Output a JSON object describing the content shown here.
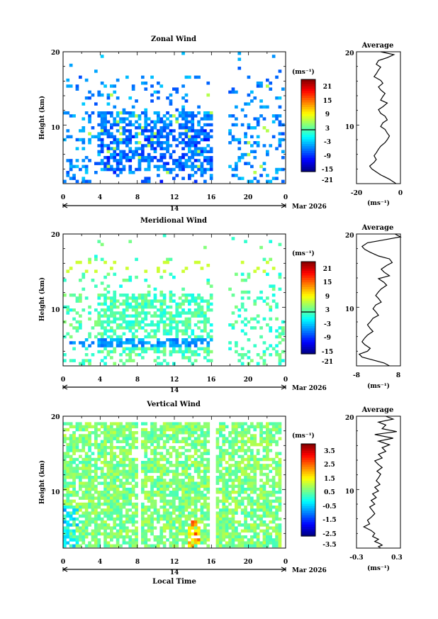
{
  "panels": [
    {
      "id": "zonal",
      "title": "Zonal Wind",
      "unit_label": "(ms⁻¹)",
      "colorbar_ticks": [
        "21",
        "15",
        "9",
        "3",
        "-3",
        "-9",
        "-15",
        "-21"
      ],
      "colorbar_range": [
        -24,
        24
      ],
      "zero_line": 0,
      "coverage": "sparse"
    },
    {
      "id": "meridional",
      "title": "Meridional Wind",
      "unit_label": "(ms⁻¹)",
      "colorbar_ticks": [
        "21",
        "15",
        "9",
        "3",
        "-3",
        "-9",
        "-15",
        "-21"
      ],
      "colorbar_range": [
        -24,
        24
      ],
      "zero_line": 0,
      "coverage": "sparse"
    },
    {
      "id": "vertical",
      "title": "Vertical Wind",
      "unit_label": "(ms⁻¹)",
      "colorbar_ticks": [
        "3.5",
        "2.5",
        "1.5",
        "0.5",
        "-0.5",
        "-1.5",
        "-2.5",
        "-3.5"
      ],
      "colorbar_range": [
        -4,
        4
      ],
      "coverage": "dense"
    }
  ],
  "ylabel": "Height (km)",
  "y_ticks": [
    "20",
    "10"
  ],
  "x_ticks": [
    "0",
    "4",
    "8",
    "12",
    "16",
    "20",
    "0"
  ],
  "day_label": "14",
  "month_label": "Mar 2026",
  "xlabel": "Local Time",
  "avg_title": "Average",
  "avg_unit": "(ms⁻¹)",
  "chart_data": [
    {
      "type": "heatmap",
      "title": "Zonal Wind",
      "xlabel": "",
      "ylabel": "Height (km)",
      "xlim": [
        0,
        24
      ],
      "ylim": [
        2,
        20
      ],
      "colorbar": {
        "unit": "ms⁻¹",
        "range": [
          -24,
          24
        ]
      }
    },
    {
      "type": "line",
      "title": "Average",
      "xlabel": "(ms⁻¹)",
      "ylabel": "",
      "xlim": [
        -20,
        0
      ],
      "x_ticks": [
        "-20",
        "0"
      ],
      "ylim": [
        2,
        20
      ],
      "y_ticks": [
        "20",
        "10"
      ],
      "series": [
        {
          "x": [
            -9,
            -3,
            -6,
            -10,
            -11,
            -9,
            -10,
            -11,
            -12,
            -9,
            -8,
            -10,
            -9,
            -7,
            -8,
            -9,
            -6,
            -8,
            -10,
            -9,
            -7,
            -6,
            -8,
            -9,
            -7,
            -6,
            -5,
            -6,
            -7,
            -9,
            -10,
            -11,
            -12,
            -11,
            -12,
            -14,
            -13,
            -11,
            -9,
            -7,
            -5,
            -4,
            -3,
            -2
          ],
          "y": [
            20,
            19.6,
            19.2,
            18.8,
            18.3,
            17.9,
            17.5,
            17.0,
            16.6,
            16.1,
            15.7,
            15.2,
            14.8,
            14.3,
            13.9,
            13.4,
            13.0,
            12.5,
            12.1,
            11.6,
            11.2,
            10.7,
            10.3,
            9.8,
            9.4,
            8.9,
            8.5,
            8.0,
            7.6,
            7.1,
            6.7,
            6.2,
            5.8,
            5.3,
            4.9,
            4.4,
            4.0,
            3.6,
            3.2,
            2.9,
            2.6,
            2.4,
            2.2,
            2.0
          ]
        }
      ]
    },
    {
      "type": "heatmap",
      "title": "Meridional Wind",
      "xlabel": "",
      "ylabel": "Height (km)",
      "xlim": [
        0,
        24
      ],
      "ylim": [
        2,
        20
      ],
      "colorbar": {
        "unit": "ms⁻¹",
        "range": [
          -24,
          24
        ]
      }
    },
    {
      "type": "line",
      "title": "Average",
      "xlabel": "(ms⁻¹)",
      "ylabel": "",
      "xlim": [
        -8,
        8
      ],
      "x_ticks": [
        "-8",
        "8"
      ],
      "ylim": [
        2,
        20
      ],
      "y_ticks": [
        "20",
        "10"
      ],
      "series": [
        {
          "x": [
            6,
            8,
            2,
            -4,
            -6,
            -5,
            -3,
            0,
            4,
            5,
            3,
            1,
            2,
            4,
            0,
            2,
            3,
            1,
            0,
            -1,
            0,
            1,
            -1,
            -2,
            -1,
            0,
            -2,
            -3,
            -4,
            -3,
            -2,
            -4,
            -5,
            -6,
            -5,
            -3,
            -4,
            -7,
            -6,
            -3,
            0,
            2,
            3,
            4
          ],
          "y": [
            20,
            19.6,
            19.2,
            18.8,
            18.3,
            17.9,
            17.5,
            17.0,
            16.6,
            16.1,
            15.7,
            15.2,
            14.8,
            14.3,
            13.9,
            13.4,
            13.0,
            12.5,
            12.1,
            11.6,
            11.2,
            10.7,
            10.3,
            9.8,
            9.4,
            8.9,
            8.5,
            8.0,
            7.6,
            7.1,
            6.7,
            6.2,
            5.8,
            5.3,
            4.9,
            4.4,
            4.0,
            3.6,
            3.2,
            2.9,
            2.6,
            2.4,
            2.2,
            2.0
          ]
        }
      ]
    },
    {
      "type": "heatmap",
      "title": "Vertical Wind",
      "xlabel": "Local Time",
      "ylabel": "Height (km)",
      "xlim": [
        0,
        24
      ],
      "ylim": [
        2,
        20
      ],
      "colorbar": {
        "unit": "ms⁻¹",
        "range": [
          -4,
          4
        ]
      }
    },
    {
      "type": "line",
      "title": "Average",
      "xlabel": "(ms⁻¹)",
      "ylabel": "",
      "xlim": [
        -0.3,
        0.3
      ],
      "x_ticks": [
        "-0.3",
        "0.3"
      ],
      "ylim": [
        2,
        20
      ],
      "y_ticks": [
        "20",
        "10"
      ],
      "series": [
        {
          "x": [
            0.1,
            0.2,
            0.0,
            0.1,
            0.05,
            0.25,
            -0.05,
            0.2,
            0.0,
            0.15,
            0.05,
            0.1,
            0.0,
            0.05,
            -0.05,
            0.0,
            0.05,
            -0.02,
            0.03,
            0.0,
            -0.03,
            0.02,
            -0.05,
            0.0,
            -0.08,
            -0.03,
            -0.1,
            -0.05,
            -0.12,
            -0.08,
            -0.05,
            -0.1,
            -0.15,
            -0.12,
            -0.2,
            -0.1,
            -0.05,
            -0.08,
            0.0,
            -0.05,
            0.02,
            0.05,
            0.0,
            0.03
          ],
          "y": [
            20,
            19.6,
            19.2,
            18.8,
            18.3,
            17.9,
            17.5,
            17.0,
            16.6,
            16.1,
            15.7,
            15.2,
            14.8,
            14.3,
            13.9,
            13.4,
            13.0,
            12.5,
            12.1,
            11.6,
            11.2,
            10.7,
            10.3,
            9.8,
            9.4,
            8.9,
            8.5,
            8.0,
            7.6,
            7.1,
            6.7,
            6.2,
            5.8,
            5.3,
            4.9,
            4.4,
            4.0,
            3.6,
            3.2,
            2.9,
            2.6,
            2.4,
            2.2,
            2.0
          ]
        }
      ]
    }
  ]
}
